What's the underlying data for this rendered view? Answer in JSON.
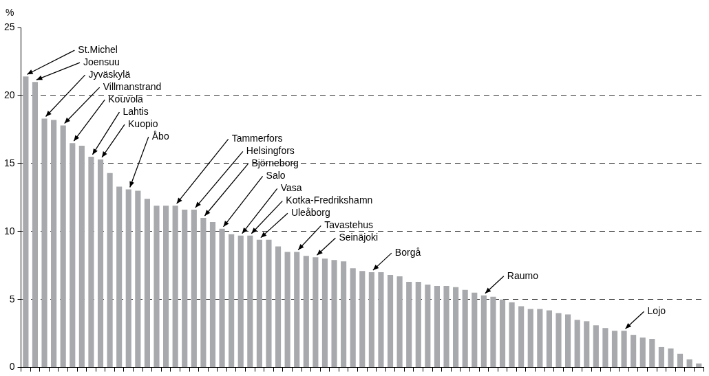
{
  "chart_data": {
    "type": "bar",
    "ylabel": "%",
    "categories": [
      null,
      null,
      null,
      null,
      null,
      null,
      null,
      null,
      null,
      null,
      null,
      null,
      null,
      null,
      null,
      null,
      null,
      null,
      null,
      null,
      null,
      null,
      null,
      null,
      null,
      null,
      null,
      null,
      null,
      null,
      null,
      null,
      null,
      null,
      null,
      null,
      null,
      null,
      null,
      null,
      null,
      null,
      null,
      null,
      null,
      null,
      null,
      null,
      null,
      null,
      null,
      null,
      null,
      null,
      null,
      null,
      null,
      null,
      null,
      null,
      null,
      null,
      null,
      null,
      null,
      null,
      null,
      null,
      null,
      null,
      null,
      null,
      null
    ],
    "values": [
      21.4,
      21.0,
      18.3,
      18.2,
      17.8,
      16.5,
      16.3,
      15.5,
      15.3,
      14.3,
      13.3,
      13.1,
      13.0,
      12.4,
      11.9,
      11.9,
      11.9,
      11.6,
      11.6,
      11.0,
      10.7,
      10.2,
      9.8,
      9.7,
      9.7,
      9.4,
      9.4,
      8.9,
      8.5,
      8.5,
      8.2,
      8.1,
      8.0,
      7.9,
      7.8,
      7.3,
      7.1,
      7.0,
      7.0,
      6.8,
      6.7,
      6.3,
      6.3,
      6.1,
      6.0,
      6.0,
      5.9,
      5.7,
      5.5,
      5.3,
      5.2,
      5.0,
      4.8,
      4.5,
      4.3,
      4.3,
      4.2,
      4.0,
      3.9,
      3.5,
      3.4,
      3.1,
      2.9,
      2.7,
      2.7,
      2.4,
      2.2,
      2.1,
      1.5,
      1.4,
      1.0,
      0.6,
      0.3
    ],
    "annotations": [
      "St.Michel",
      "Joensuu",
      "Jyväskylä",
      "Villmanstrand",
      "Kouvola",
      "Lahtis",
      "Kuopio",
      "Åbo",
      "Tammerfors",
      "Helsingfors",
      "Björneborg",
      "Salo",
      "Vasa",
      "Kotka-Fredrikshamn",
      "Uleåborg",
      "Tavastehus",
      "Seinäjoki",
      "Borgå",
      "Raumo",
      "Lojo"
    ],
    "color": "#a7a9ac",
    "ylim": [
      0,
      25
    ],
    "yticks": [
      0,
      5,
      10,
      15,
      20,
      25
    ],
    "grid": "y",
    "tick_labels": "y",
    "legend": false
  }
}
